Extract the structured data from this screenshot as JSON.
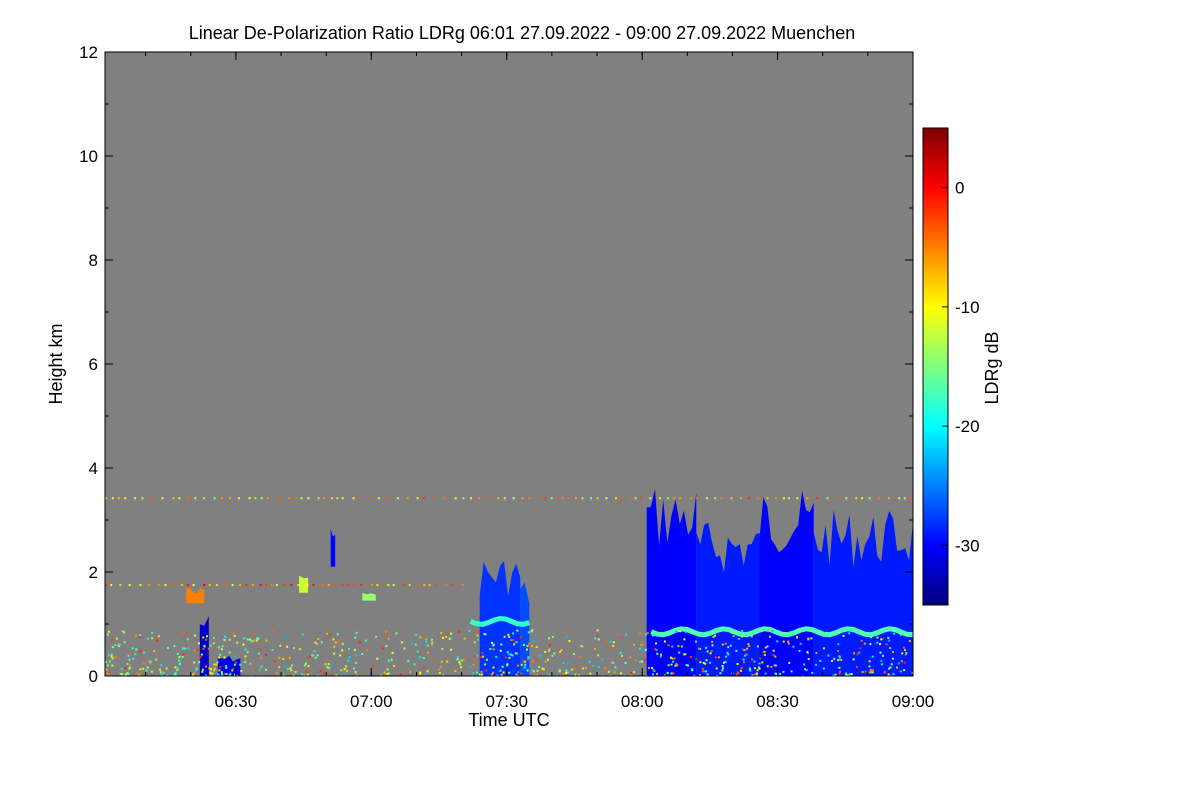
{
  "chart_data": {
    "type": "heatmap",
    "title": "Linear De-Polarization Ratio LDRg   06:01 27.09.2022 - 09:00 27.09.2022 Muenchen",
    "xlabel": "Time UTC",
    "ylabel": "Height km",
    "xlim_minutes_utc": [
      361,
      540
    ],
    "ylim": [
      0,
      12
    ],
    "x_ticks": [
      {
        "label": "06:30",
        "value": 390
      },
      {
        "label": "07:00",
        "value": 420
      },
      {
        "label": "07:30",
        "value": 450
      },
      {
        "label": "08:00",
        "value": 480
      },
      {
        "label": "08:30",
        "value": 510
      },
      {
        "label": "09:00",
        "value": 540
      }
    ],
    "y_ticks": [
      {
        "label": "0",
        "value": 0
      },
      {
        "label": "2",
        "value": 2
      },
      {
        "label": "4",
        "value": 4
      },
      {
        "label": "6",
        "value": 6
      },
      {
        "label": "8",
        "value": 8
      },
      {
        "label": "10",
        "value": 10
      },
      {
        "label": "12",
        "value": 12
      }
    ],
    "colorbar": {
      "label": "LDRg dB",
      "range": [
        -35,
        5
      ],
      "ticks": [
        {
          "label": "0",
          "value": 0
        },
        {
          "label": "-10",
          "value": -10
        },
        {
          "label": "-20",
          "value": -20
        },
        {
          "label": "-30",
          "value": -30
        }
      ],
      "colormap": [
        "#000080",
        "#0000ff",
        "#0080ff",
        "#00ffff",
        "#80ff80",
        "#ffff00",
        "#ff8000",
        "#ff0000",
        "#800000"
      ]
    },
    "background_color": "#808080",
    "features": [
      {
        "kind": "cloud",
        "t_start": 382,
        "t_end": 384,
        "h_base": 0.0,
        "h_top": 1.2,
        "ldr": -32
      },
      {
        "kind": "cloud",
        "t_start": 386,
        "t_end": 391,
        "h_base": 0.0,
        "h_top": 0.4,
        "ldr": -31
      },
      {
        "kind": "cloud",
        "t_start": 411,
        "t_end": 412,
        "h_base": 2.1,
        "h_top": 2.9,
        "ldr": -30
      },
      {
        "kind": "cloud",
        "t_start": 418,
        "t_end": 421,
        "h_base": 1.45,
        "h_top": 1.6,
        "ldr": -14
      },
      {
        "kind": "cloud",
        "t_start": 404,
        "t_end": 406,
        "h_base": 1.6,
        "h_top": 1.95,
        "ldr": -12
      },
      {
        "kind": "cloud",
        "t_start": 379,
        "t_end": 383,
        "h_base": 1.4,
        "h_top": 1.7,
        "ldr": -5
      },
      {
        "kind": "cloud",
        "t_start": 444,
        "t_end": 453,
        "h_base": 0.0,
        "h_top": 2.35,
        "ldr": -28
      },
      {
        "kind": "cloud",
        "t_start": 453,
        "t_end": 455,
        "h_base": 0.0,
        "h_top": 1.9,
        "ldr": -27
      },
      {
        "kind": "cloud",
        "t_start": 481,
        "t_end": 492,
        "h_base": 0.0,
        "h_top": 3.7,
        "ldr": -30
      },
      {
        "kind": "cloud",
        "t_start": 492,
        "t_end": 506,
        "h_base": 0.0,
        "h_top": 3.0,
        "ldr": -29
      },
      {
        "kind": "cloud",
        "t_start": 506,
        "t_end": 518,
        "h_base": 0.0,
        "h_top": 3.6,
        "ldr": -30
      },
      {
        "kind": "cloud",
        "t_start": 518,
        "t_end": 540,
        "h_base": 0.0,
        "h_top": 3.2,
        "ldr": -29
      },
      {
        "kind": "melting_layer",
        "t_start": 442,
        "t_end": 455,
        "h": 1.05,
        "ldr": -18
      },
      {
        "kind": "melting_layer",
        "t_start": 482,
        "t_end": 540,
        "h": 0.85,
        "ldr": -17
      },
      {
        "kind": "clutter_layer",
        "t_start": 361,
        "t_end": 540,
        "h_base": 0.0,
        "h_top": 0.9,
        "ldr": -12
      },
      {
        "kind": "clutter_line",
        "t_start": 361,
        "t_end": 540,
        "h": 3.42,
        "ldr": -8
      },
      {
        "kind": "clutter_line",
        "t_start": 361,
        "t_end": 440,
        "h": 1.75,
        "ldr": -6
      }
    ]
  }
}
